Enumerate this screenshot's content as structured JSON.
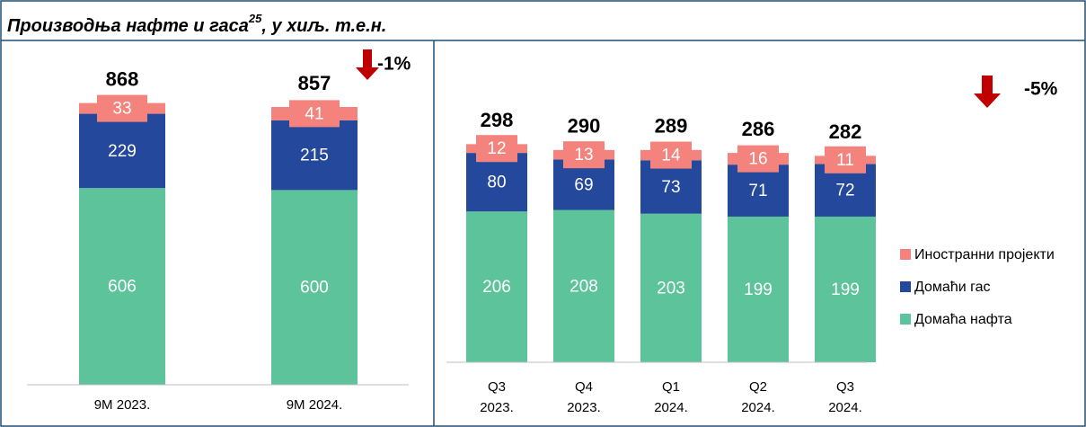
{
  "title": [
    "Производња нафте и гаса",
    "25",
    ", у хиљ. т.е.н."
  ],
  "chart_data": [
    {
      "type": "stacked_bar",
      "categories": [
        "9M 2023.",
        "9M 2024."
      ],
      "series": [
        {
          "name": "Домаћа нафта",
          "color": "#5cc39b",
          "values": [
            606,
            600
          ]
        },
        {
          "name": "Домаћи гас",
          "color": "#24489b",
          "values": [
            229,
            215
          ]
        },
        {
          "name": "Иностранни пројекти",
          "color": "#f4837d",
          "values": [
            33,
            41
          ]
        }
      ],
      "totals": [
        868,
        857
      ],
      "annotation": "-1%",
      "ylim": [
        0,
        1000
      ]
    },
    {
      "type": "stacked_bar",
      "categories": [
        [
          "Q3",
          "2023."
        ],
        [
          "Q4",
          "2023."
        ],
        [
          "Q1",
          "2024."
        ],
        [
          "Q2",
          "2024."
        ],
        [
          "Q3",
          "2024."
        ]
      ],
      "series": [
        {
          "name": "Домаћа нафта",
          "color": "#5cc39b",
          "values": [
            206,
            208,
            203,
            199,
            199
          ]
        },
        {
          "name": "Домаћи гас",
          "color": "#24489b",
          "values": [
            80,
            69,
            73,
            71,
            72
          ]
        },
        {
          "name": "Иностранни пројекти",
          "color": "#f4837d",
          "values": [
            12,
            13,
            14,
            16,
            11
          ]
        }
      ],
      "totals": [
        298,
        290,
        289,
        286,
        282
      ],
      "annotation": "-5%",
      "legend": "right",
      "ylim": [
        0,
        350
      ]
    }
  ]
}
